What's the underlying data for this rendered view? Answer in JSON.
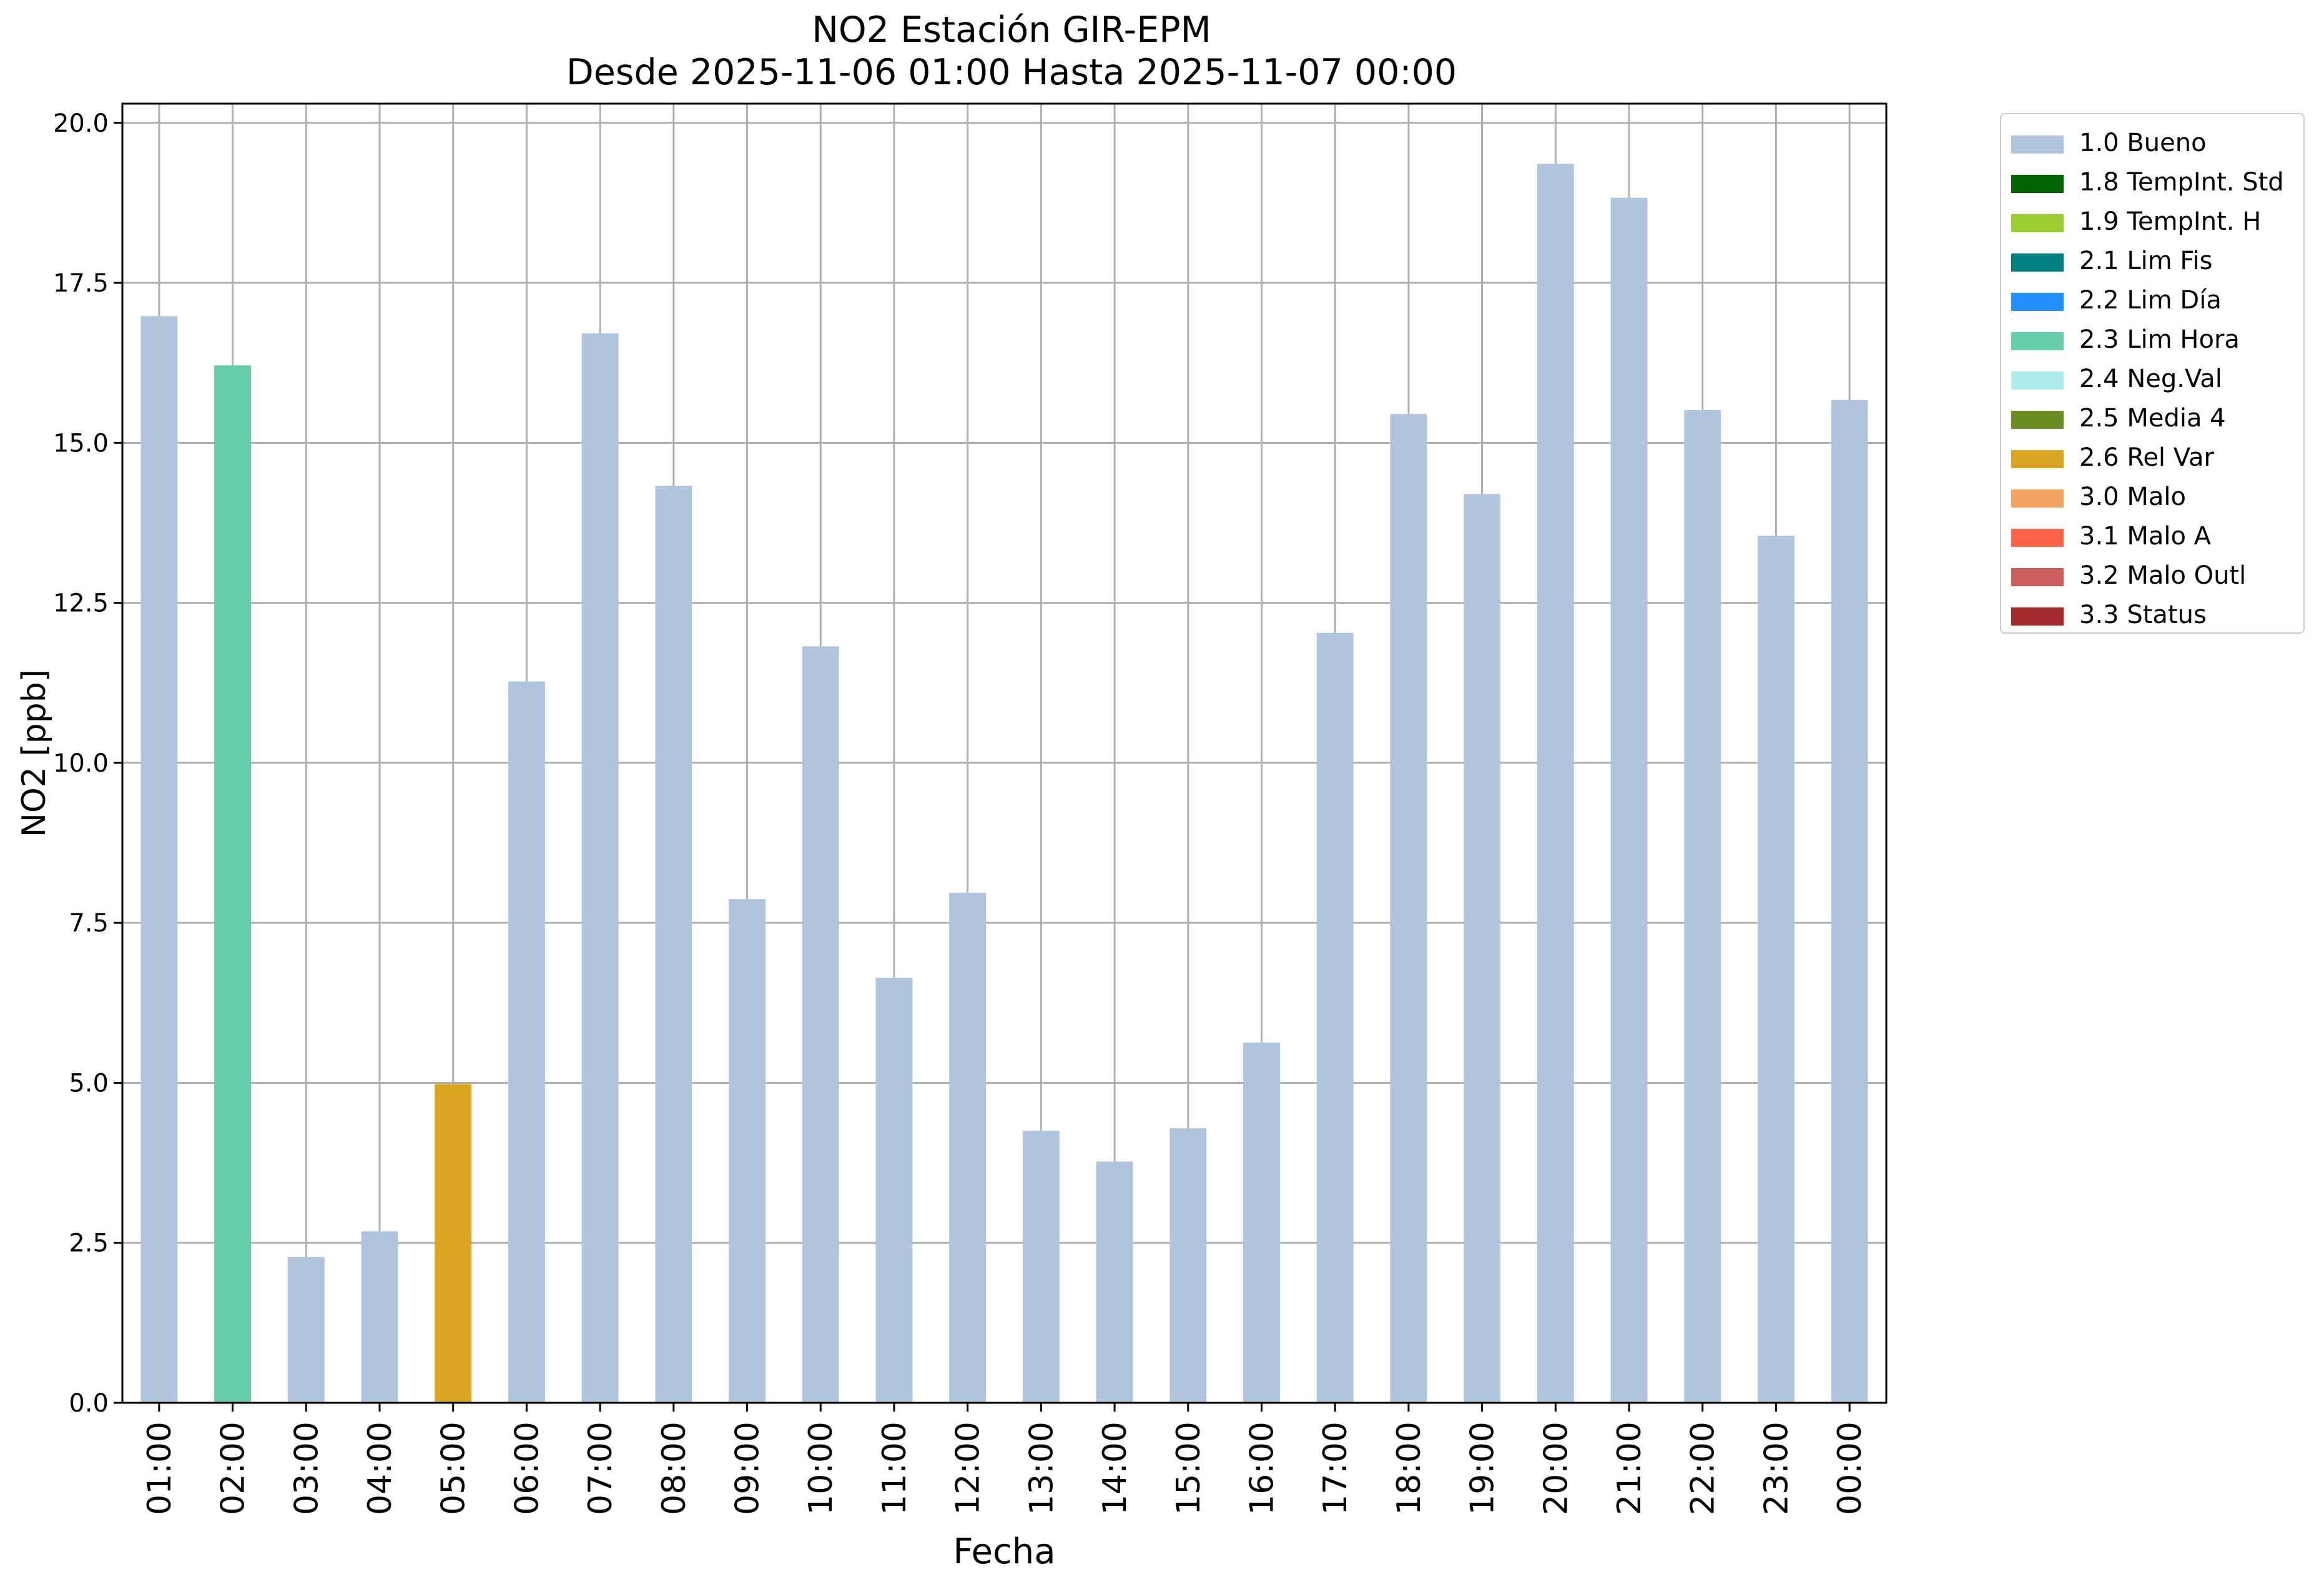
{
  "chart_data": {
    "type": "bar",
    "title": "NO2 Estación GIR-EPM",
    "subtitle": "Desde 2025-11-06 01:00 Hasta 2025-11-07 00:00",
    "xlabel": "Fecha",
    "ylabel": "NO2 [ppb]",
    "ylim": [
      0,
      20.3
    ],
    "yticks": [
      "0.0",
      "2.5",
      "5.0",
      "7.5",
      "10.0",
      "12.5",
      "15.0",
      "17.5",
      "20.0"
    ],
    "grid": true,
    "legend_placement": "outside-right",
    "categories": [
      "01:00",
      "02:00",
      "03:00",
      "04:00",
      "05:00",
      "06:00",
      "07:00",
      "08:00",
      "09:00",
      "10:00",
      "11:00",
      "12:00",
      "13:00",
      "14:00",
      "15:00",
      "16:00",
      "17:00",
      "18:00",
      "19:00",
      "20:00",
      "21:00",
      "22:00",
      "23:00",
      "00:00"
    ],
    "values": [
      16.98,
      16.21,
      2.28,
      2.68,
      4.98,
      11.27,
      16.71,
      14.33,
      7.87,
      11.82,
      6.64,
      7.97,
      4.25,
      3.77,
      4.29,
      5.63,
      12.03,
      15.45,
      14.2,
      19.36,
      18.83,
      15.51,
      13.55,
      15.67
    ],
    "flags": [
      "1.0 Bueno",
      "2.3 Lim Hora",
      "1.0 Bueno",
      "1.0 Bueno",
      "2.6 Rel Var",
      "1.0 Bueno",
      "1.0 Bueno",
      "1.0 Bueno",
      "1.0 Bueno",
      "1.0 Bueno",
      "1.0 Bueno",
      "1.0 Bueno",
      "1.0 Bueno",
      "1.0 Bueno",
      "1.0 Bueno",
      "1.0 Bueno",
      "1.0 Bueno",
      "1.0 Bueno",
      "1.0 Bueno",
      "1.0 Bueno",
      "1.0 Bueno",
      "1.0 Bueno",
      "1.0 Bueno",
      "1.0 Bueno"
    ],
    "legend": [
      {
        "label": "1.0 Bueno",
        "color": "#b0c4de"
      },
      {
        "label": "1.8 TempInt. Std",
        "color": "#006400"
      },
      {
        "label": "1.9 TempInt. H",
        "color": "#9acd32"
      },
      {
        "label": "2.1 Lim Fis",
        "color": "#008080"
      },
      {
        "label": "2.2 Lim Día",
        "color": "#1e90ff"
      },
      {
        "label": "2.3 Lim Hora",
        "color": "#66cdaa"
      },
      {
        "label": "2.4 Neg.Val",
        "color": "#afeeee"
      },
      {
        "label": "2.5 Media 4",
        "color": "#6b8e23"
      },
      {
        "label": "2.6 Rel Var",
        "color": "#daa520"
      },
      {
        "label": "3.0 Malo",
        "color": "#f4a460"
      },
      {
        "label": "3.1 Malo A",
        "color": "#ff6347"
      },
      {
        "label": "3.2 Malo Outl",
        "color": "#cd5c5c"
      },
      {
        "label": "3.3 Status",
        "color": "#a52a2a"
      }
    ]
  }
}
